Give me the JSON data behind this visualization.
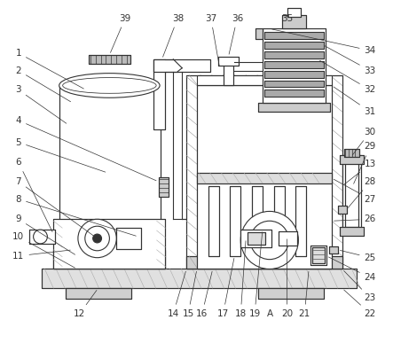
{
  "bg_color": "#ffffff",
  "lc": "#333333",
  "lw": 0.8,
  "label_fs": 7.0,
  "label_color": "#333333"
}
